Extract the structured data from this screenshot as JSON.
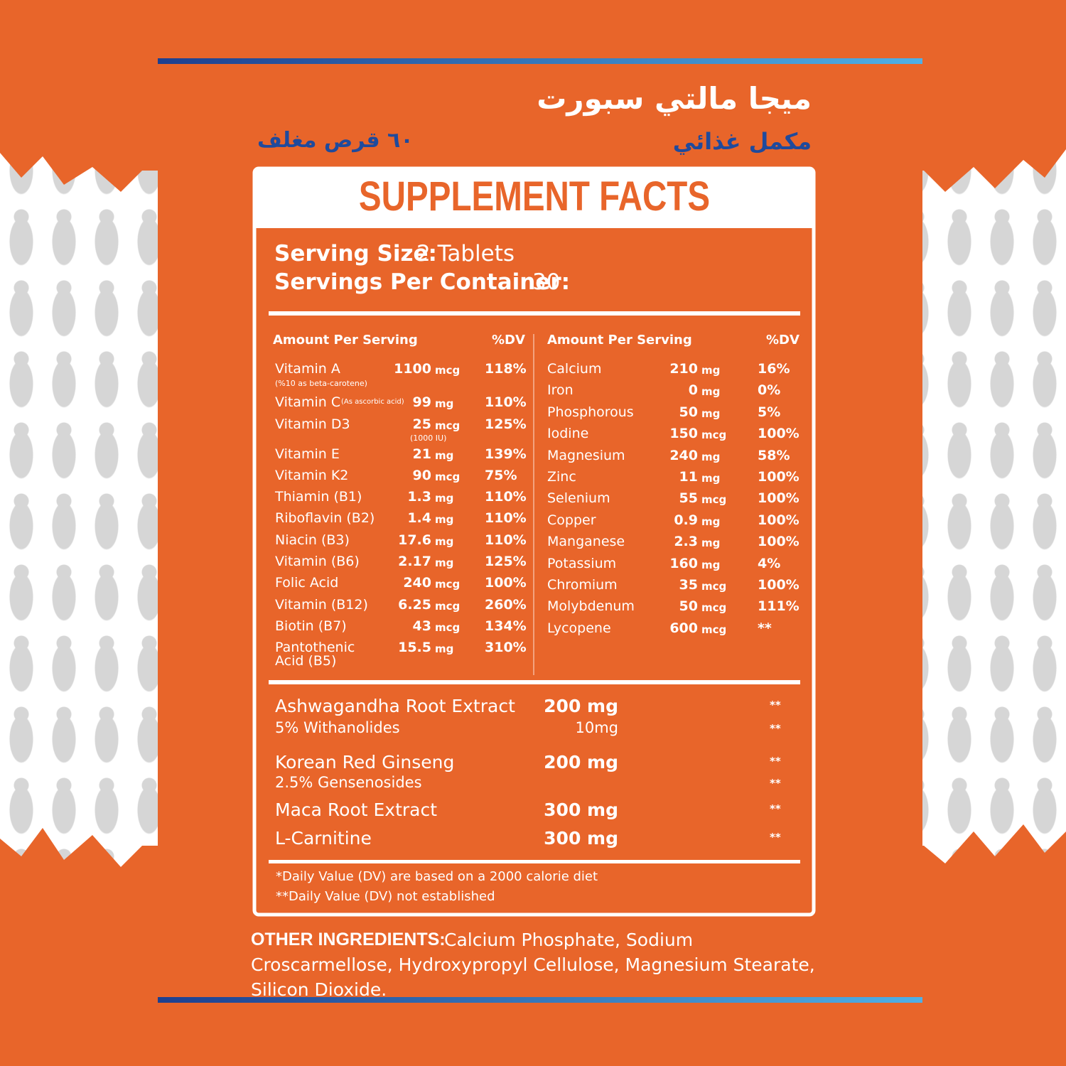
{
  "header": {
    "title": "ميجا مالتي سبورت",
    "subtitle": "مكمل غذائي",
    "count": "٦٠ قرص مغلف"
  },
  "facts": {
    "title": "SUPPLEMENT FACTS",
    "serving_size": {
      "label": "Serving Size:",
      "value": "2 Tablets"
    },
    "servings_per_container": {
      "label": "Servings Per Container:",
      "value": "30"
    },
    "left": {
      "header": {
        "amount": "Amount Per Serving",
        "dv": "%DV"
      },
      "rows": [
        {
          "name": "Vitamin A",
          "note": "(%10 as beta-carotene)",
          "amount": "1100",
          "unit": "mcg",
          "dv": "118%"
        },
        {
          "name": "Vitamin C",
          "note": "(As ascorbic acid)",
          "amount": "99",
          "unit": "mg",
          "dv": "110%"
        },
        {
          "name": "Vitamin D3",
          "amount": "25",
          "unit": "mcg",
          "amount_note": "(1000 IU)",
          "dv": "125%"
        },
        {
          "name": "Vitamin E",
          "amount": "21",
          "unit": "mg",
          "dv": "139%"
        },
        {
          "name": "Vitamin K2",
          "amount": "90",
          "unit": "mcg",
          "dv": "75%"
        },
        {
          "name": "Thiamin (B1)",
          "amount": "1.3",
          "unit": "mg",
          "dv": "110%"
        },
        {
          "name": "Riboflavin (B2)",
          "amount": "1.4",
          "unit": "mg",
          "dv": "110%"
        },
        {
          "name": "Niacin (B3)",
          "amount": "17.6",
          "unit": "mg",
          "dv": "110%"
        },
        {
          "name": "Vitamin (B6)",
          "amount": "2.17",
          "unit": "mg",
          "dv": "125%"
        },
        {
          "name": "Folic Acid",
          "amount": "240",
          "unit": "mcg",
          "dv": "100%"
        },
        {
          "name": "Vitamin (B12)",
          "amount": "6.25",
          "unit": "mcg",
          "dv": "260%"
        },
        {
          "name": "Biotin (B7)",
          "amount": "43",
          "unit": "mcg",
          "dv": "134%"
        },
        {
          "name": "Pantothenic Acid (B5)",
          "amount": "15.5",
          "unit": "mg",
          "dv": "310%"
        }
      ]
    },
    "right": {
      "header": {
        "amount": "Amount Per Serving",
        "dv": "%DV"
      },
      "rows": [
        {
          "name": "Calcium",
          "amount": "210",
          "unit": "mg",
          "dv": "16%"
        },
        {
          "name": "Iron",
          "amount": "0",
          "unit": "mg",
          "dv": "0%"
        },
        {
          "name": "Phosphorous",
          "amount": "50",
          "unit": "mg",
          "dv": "5%"
        },
        {
          "name": "Iodine",
          "amount": "150",
          "unit": "mcg",
          "dv": "100%"
        },
        {
          "name": "Magnesium",
          "amount": "240",
          "unit": "mg",
          "dv": "58%"
        },
        {
          "name": "Zinc",
          "amount": "11",
          "unit": "mg",
          "dv": "100%"
        },
        {
          "name": "Selenium",
          "amount": "55",
          "unit": "mcg",
          "dv": "100%"
        },
        {
          "name": "Copper",
          "amount": "0.9",
          "unit": "mg",
          "dv": "100%"
        },
        {
          "name": "Manganese",
          "amount": "2.3",
          "unit": "mg",
          "dv": "100%"
        },
        {
          "name": "Potassium",
          "amount": "160",
          "unit": "mg",
          "dv": "4%"
        },
        {
          "name": "Chromium",
          "amount": "35",
          "unit": "mcg",
          "dv": "100%"
        },
        {
          "name": "Molybdenum",
          "amount": "50",
          "unit": "mcg",
          "dv": "111%"
        },
        {
          "name": "Lycopene",
          "amount": "600",
          "unit": "mcg",
          "dv": "**"
        }
      ]
    },
    "extracts": [
      {
        "name": "Ashwagandha Root Extract",
        "amount": "200 mg",
        "dv": "**"
      },
      {
        "name": "5% Withanolides",
        "amount": "10mg",
        "dv": "**"
      },
      {
        "name": "Korean Red Ginseng",
        "amount": "200 mg",
        "dv": "**"
      },
      {
        "name": "2.5% Gensenosides",
        "dv": "**"
      },
      {
        "name": "Maca Root Extract",
        "amount": "300 mg",
        "dv": "**"
      },
      {
        "name": "L-Carnitine",
        "amount": "300 mg",
        "dv": "**"
      }
    ],
    "footnotes": [
      "*Daily Value (DV) are based on a 2000 calorie diet",
      "**Daily Value (DV) not established"
    ]
  },
  "other_ingredients": {
    "label": "OTHER INGREDIENTS:",
    "text": "Calcium Phosphate, Sodium Croscarmellose, Hydroxypropyl Cellulose, Magnesium Stearate, Silicon Dioxide."
  }
}
